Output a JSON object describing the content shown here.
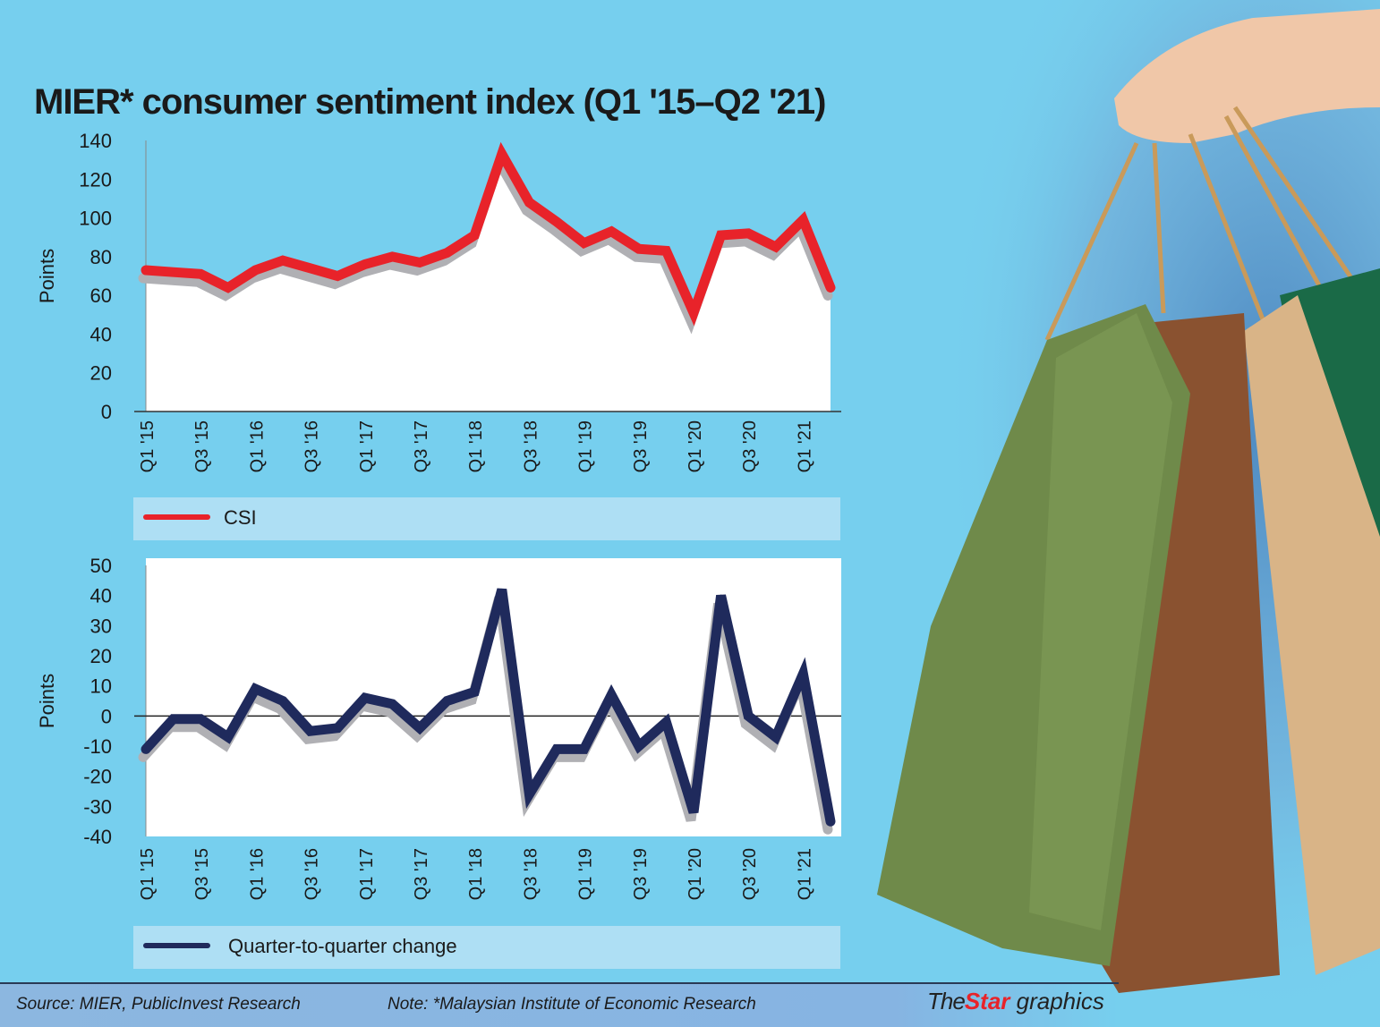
{
  "title": "MIER* consumer sentiment index (Q1 '15–Q2 '21)",
  "footer": {
    "source": "Source: MIER, PublicInvest Research",
    "note": "Note: *Malaysian Institute of Economic Research",
    "logo_the": "The",
    "logo_star": "Star",
    "logo_graphics": "graphics"
  },
  "colors": {
    "background": "#76cfee",
    "csi": "#e8232a",
    "change": "#1f2a5c",
    "shadow": "#b0b0b4"
  },
  "chart_data": [
    {
      "type": "area",
      "title": "CSI",
      "xlabel": "",
      "ylabel": "Points",
      "ylim": [
        0,
        140
      ],
      "yticks": [
        "0",
        "20",
        "40",
        "60",
        "80",
        "100",
        "120",
        "140"
      ],
      "xtick_labels": [
        "Q1 '15",
        "Q3 '15",
        "Q1 '16",
        "Q3 '16",
        "Q1 '17",
        "Q3 '17",
        "Q1 '18",
        "Q3 '18",
        "Q1 '19",
        "Q3 '19",
        "Q1 '20",
        "Q3 '20",
        "Q1 '21"
      ],
      "legend": "CSI",
      "legend_placement": "bottom",
      "x": [
        "Q1 '15",
        "Q2 '15",
        "Q3 '15",
        "Q4 '15",
        "Q1 '16",
        "Q2 '16",
        "Q3 '16",
        "Q4 '16",
        "Q1 '17",
        "Q2 '17",
        "Q3 '17",
        "Q4 '17",
        "Q1 '18",
        "Q2 '18",
        "Q3 '18",
        "Q4 '18",
        "Q1 '19",
        "Q2 '19",
        "Q3 '19",
        "Q4 '19",
        "Q1 '20",
        "Q2 '20",
        "Q3 '20",
        "Q4 '20",
        "Q1 '21",
        "Q2 '21"
      ],
      "values": [
        73,
        72,
        71,
        64,
        73,
        78,
        74,
        70,
        76,
        80,
        77,
        82,
        91,
        133,
        108,
        98,
        87,
        93,
        84,
        83,
        51,
        91,
        92,
        85,
        99,
        64
      ]
    },
    {
      "type": "line",
      "title": "Quarter-to-quarter change",
      "xlabel": "",
      "ylabel": "Points",
      "ylim": [
        -40,
        50
      ],
      "yticks": [
        "-40",
        "-30",
        "-20",
        "-10",
        "0",
        "10",
        "20",
        "30",
        "40",
        "50"
      ],
      "xtick_labels": [
        "Q1 '15",
        "Q3 '15",
        "Q1 '16",
        "Q3 '16",
        "Q1 '17",
        "Q3 '17",
        "Q1 '18",
        "Q3 '18",
        "Q1 '19",
        "Q3 '19",
        "Q1 '20",
        "Q3 '20",
        "Q1 '21"
      ],
      "legend": "Quarter-to-quarter change",
      "legend_placement": "bottom",
      "x": [
        "Q1 '15",
        "Q2 '15",
        "Q3 '15",
        "Q4 '15",
        "Q1 '16",
        "Q2 '16",
        "Q3 '16",
        "Q4 '16",
        "Q1 '17",
        "Q2 '17",
        "Q3 '17",
        "Q4 '17",
        "Q1 '18",
        "Q2 '18",
        "Q3 '18",
        "Q4 '18",
        "Q1 '19",
        "Q2 '19",
        "Q3 '19",
        "Q4 '19",
        "Q1 '20",
        "Q2 '20",
        "Q3 '20",
        "Q4 '20",
        "Q1 '21",
        "Q2 '21"
      ],
      "values": [
        -11,
        -1,
        -1,
        -7,
        9,
        5,
        -5,
        -4,
        6,
        4,
        -4,
        5,
        8,
        42,
        -26,
        -11,
        -11,
        7,
        -10,
        -2,
        -32,
        40,
        0,
        -7,
        14,
        -35
      ]
    }
  ]
}
